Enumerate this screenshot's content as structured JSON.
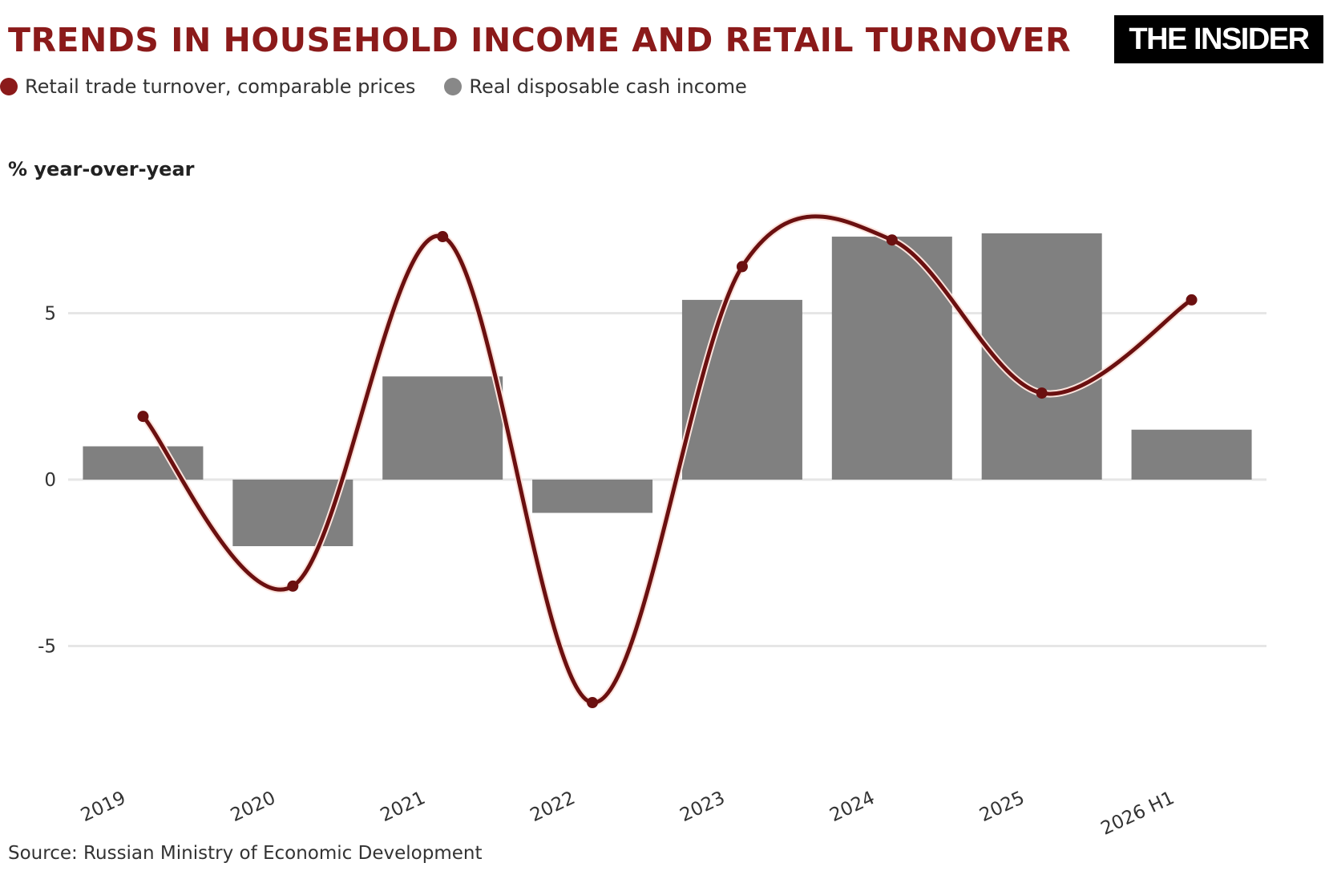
{
  "header": {
    "title": "TRENDS IN HOUSEHOLD INCOME AND RETAIL TURNOVER",
    "logo_text": "THE INSIDER"
  },
  "y_unit_label": "% year-over-year",
  "source": "Source: Russian Ministry of Economic Development",
  "colors": {
    "title": "#8b1a1a",
    "line": "#6b1010",
    "line_halo": "#fbe3dc",
    "bar": "#808080",
    "grid": "#e6e6e6"
  },
  "chart_data": {
    "type": "bar",
    "categories": [
      "2019",
      "2020",
      "2021",
      "2022",
      "2023",
      "2024",
      "2025",
      "2026 H1"
    ],
    "series": [
      {
        "name": "Retail trade turnover, comparable prices",
        "type": "line",
        "values": [
          1.9,
          -3.2,
          7.3,
          -6.7,
          6.4,
          7.2,
          2.6,
          5.4
        ]
      },
      {
        "name": "Real disposable cash income",
        "type": "bar",
        "values": [
          1.0,
          -2.0,
          3.1,
          -1.0,
          5.4,
          7.3,
          7.4,
          1.5
        ]
      }
    ],
    "ylabel": "% year-over-year",
    "yticks": [
      -5,
      0,
      5
    ],
    "ylim": [
      -8.5,
      9.5
    ],
    "grid": true,
    "legend": "top-left"
  }
}
